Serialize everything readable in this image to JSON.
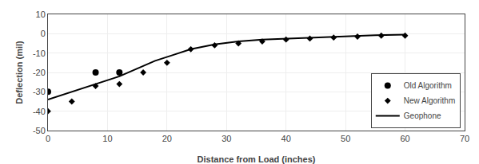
{
  "chart_data": {
    "type": "scatter",
    "xlabel": "Distance from Load (inches)",
    "ylabel": "Deflection (mil)",
    "xlim": [
      0,
      70
    ],
    "ylim": [
      -50,
      10
    ],
    "xticks": [
      0,
      10,
      20,
      30,
      40,
      50,
      60,
      70
    ],
    "yticks": [
      -50,
      -40,
      -30,
      -20,
      -10,
      0,
      10
    ],
    "grid": true,
    "legend": "lower right",
    "series": [
      {
        "name": "Old Algorithm",
        "type": "scatter",
        "marker": "circle",
        "color": "#000000",
        "x": [
          0,
          8,
          12
        ],
        "values": [
          -30,
          -20,
          -20
        ]
      },
      {
        "name": "New Algorithm",
        "type": "scatter",
        "marker": "diamond",
        "color": "#000000",
        "x": [
          0,
          4,
          8,
          12,
          16,
          20,
          24,
          28,
          32,
          36,
          40,
          44,
          48,
          52,
          56,
          60
        ],
        "values": [
          -40,
          -35,
          -27,
          -26,
          -20,
          -15,
          -8,
          -6,
          -5,
          -4,
          -3,
          -2.5,
          -2,
          -1.5,
          -1,
          -1
        ]
      },
      {
        "name": "Geophone",
        "type": "line",
        "line_style": "solid",
        "color": "#000000",
        "x": [
          0,
          3,
          6,
          9,
          12,
          15,
          18,
          21,
          24,
          28,
          32,
          36,
          40,
          45,
          50,
          55,
          60
        ],
        "values": [
          -34,
          -31,
          -28,
          -25,
          -22,
          -18,
          -14,
          -11,
          -8,
          -5.5,
          -4,
          -3,
          -2.5,
          -1.8,
          -1.2,
          -0.8,
          -0.5
        ]
      }
    ]
  }
}
